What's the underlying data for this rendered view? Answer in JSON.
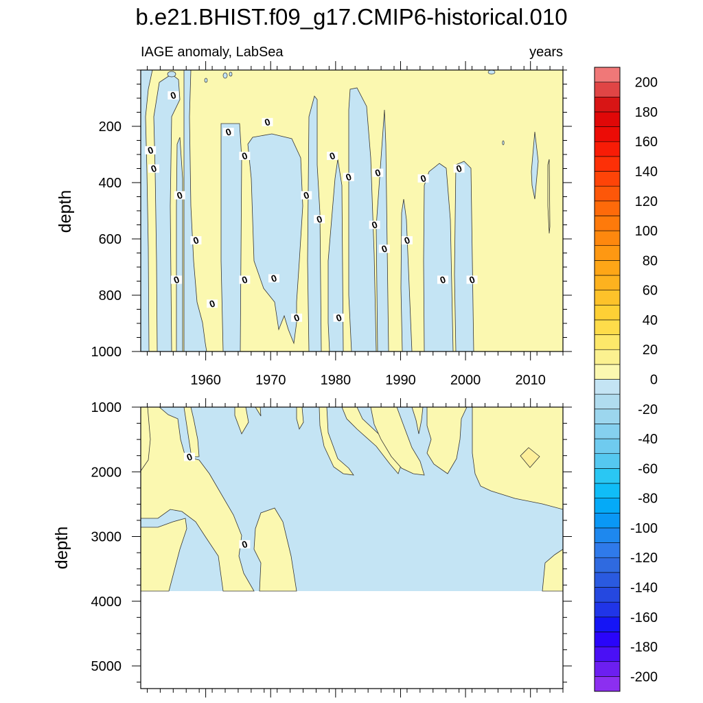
{
  "chart_data": {
    "type": "heatmap",
    "title": "b.e21.BHIST.f09_g17.CMIP6-historical.010",
    "subtitle_left": "IAGE anomaly, LabSea",
    "subtitle_right": "years",
    "xlabel": "",
    "ylabel": "depth",
    "xlim": [
      1950,
      2015
    ],
    "x_ticks": [
      1960,
      1970,
      1980,
      1990,
      2000,
      2010
    ],
    "x_tick_labels": [
      "1960",
      "1970",
      "1980",
      "1990",
      "2000",
      "2010"
    ],
    "panels": [
      {
        "name": "upper",
        "ylim": [
          0,
          1000
        ],
        "y_ticks": [
          200,
          400,
          600,
          800,
          1000
        ],
        "y_tick_labels": [
          "200",
          "400",
          "600",
          "800",
          "1000"
        ],
        "fill_bottom": 1000,
        "contour_labels": [
          {
            "x": 1951.5,
            "y": 285,
            "text": "0"
          },
          {
            "x": 1952,
            "y": 350,
            "text": "0"
          },
          {
            "x": 1955,
            "y": 90,
            "text": "0"
          },
          {
            "x": 1956,
            "y": 445,
            "text": "0"
          },
          {
            "x": 1955.5,
            "y": 745,
            "text": "0"
          },
          {
            "x": 1958.5,
            "y": 605,
            "text": "0"
          },
          {
            "x": 1961,
            "y": 830,
            "text": "0"
          },
          {
            "x": 1963.5,
            "y": 220,
            "text": "0"
          },
          {
            "x": 1966,
            "y": 305,
            "text": "0"
          },
          {
            "x": 1966,
            "y": 745,
            "text": "0"
          },
          {
            "x": 1969.5,
            "y": 185,
            "text": "0"
          },
          {
            "x": 1970.5,
            "y": 740,
            "text": "0"
          },
          {
            "x": 1974,
            "y": 880,
            "text": "0"
          },
          {
            "x": 1975.5,
            "y": 445,
            "text": "0"
          },
          {
            "x": 1977.5,
            "y": 530,
            "text": "0"
          },
          {
            "x": 1979.5,
            "y": 305,
            "text": "0"
          },
          {
            "x": 1980.5,
            "y": 880,
            "text": "0"
          },
          {
            "x": 1982,
            "y": 380,
            "text": "0"
          },
          {
            "x": 1986,
            "y": 550,
            "text": "0"
          },
          {
            "x": 1986.5,
            "y": 365,
            "text": "0"
          },
          {
            "x": 1987.5,
            "y": 635,
            "text": "0"
          },
          {
            "x": 1991,
            "y": 605,
            "text": "0"
          },
          {
            "x": 1993.5,
            "y": 385,
            "text": "0"
          },
          {
            "x": 1996.5,
            "y": 745,
            "text": "0"
          },
          {
            "x": 1999,
            "y": 350,
            "text": "0"
          },
          {
            "x": 2001,
            "y": 745,
            "text": "0"
          }
        ]
      },
      {
        "name": "lower",
        "ylim": [
          1000,
          5350
        ],
        "y_ticks": [
          1000,
          2000,
          3000,
          4000,
          5000
        ],
        "y_tick_labels": [
          "1000",
          "2000",
          "3000",
          "4000",
          "5000"
        ],
        "fill_bottom": 3850,
        "contour_labels": [
          {
            "x": 1957.5,
            "y": 1770,
            "text": "0"
          },
          {
            "x": 1966,
            "y": 3120,
            "text": "0"
          }
        ]
      }
    ],
    "colorbar": {
      "levels": [
        -210,
        -200,
        -190,
        -180,
        -170,
        -160,
        -150,
        -140,
        -130,
        -120,
        -110,
        -100,
        -90,
        -80,
        -70,
        -60,
        -50,
        -40,
        -30,
        -20,
        -10,
        0,
        10,
        20,
        30,
        40,
        50,
        60,
        70,
        80,
        90,
        100,
        110,
        120,
        130,
        140,
        150,
        160,
        170,
        180,
        190,
        200,
        210
      ],
      "colors": [
        "#8c2ff0",
        "#6c1ff0",
        "#4a10f5",
        "#2a05fa",
        "#1515f5",
        "#2035e8",
        "#2548e0",
        "#2a5ae0",
        "#2f6ae0",
        "#2f7aea",
        "#1e88ee",
        "#0a98f5",
        "#05aaf7",
        "#10bdf7",
        "#2ac7f3",
        "#55c8f0",
        "#6fcbef",
        "#85d0ef",
        "#9cd6ee",
        "#b0dcef",
        "#c4e4f4",
        "#fbf8b0",
        "#fbf190",
        "#fde86a",
        "#fedc4a",
        "#fed035",
        "#fdc22a",
        "#fdb21f",
        "#fea617",
        "#fe9812",
        "#fe880e",
        "#fe7a0b",
        "#fe6a0a",
        "#fd5709",
        "#fe4408",
        "#fd3007",
        "#f81c06",
        "#ec0c06",
        "#e00808",
        "#d81515",
        "#e04545",
        "#f07878",
        "#f8b0b0"
      ],
      "labels": [
        -200,
        -180,
        -160,
        -140,
        -120,
        -100,
        -80,
        -60,
        -40,
        -20,
        0,
        20,
        40,
        60,
        80,
        100,
        120,
        140,
        160,
        180,
        200
      ],
      "label_texts": [
        "-200",
        "-180",
        "-160",
        "-140",
        "-120",
        "-100",
        "-80",
        "-60",
        "-40",
        "-20",
        "0",
        "20",
        "40",
        "60",
        "80",
        "100",
        "120",
        "140",
        "160",
        "180",
        "200"
      ]
    }
  }
}
